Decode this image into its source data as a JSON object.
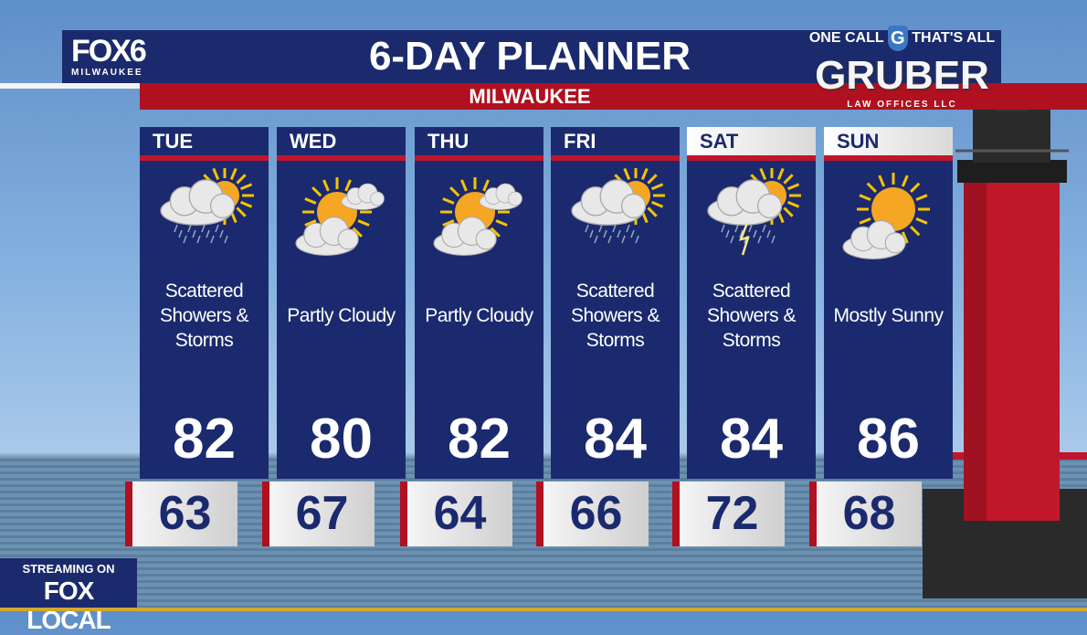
{
  "header": {
    "station": "FOX6",
    "station_city": "MILWAUKEE",
    "title": "6-DAY PLANNER",
    "location": "MILWAUKEE"
  },
  "sponsor": {
    "tagline_left": "ONE CALL",
    "logo_letter": "G",
    "tagline_right": "THAT'S ALL",
    "name": "GRUBER",
    "subtitle": "LAW OFFICES LLC"
  },
  "days": [
    {
      "day": "TUE",
      "condition": "Scattered Showers & Storms",
      "high": "82",
      "low": "63",
      "icon": "sun-cloud-rain-icon",
      "highlight": false
    },
    {
      "day": "WED",
      "condition": "Partly Cloudy",
      "high": "80",
      "low": "67",
      "icon": "partly-cloudy-icon",
      "highlight": false
    },
    {
      "day": "THU",
      "condition": "Partly Cloudy",
      "high": "82",
      "low": "64",
      "icon": "partly-cloudy-icon",
      "highlight": false
    },
    {
      "day": "FRI",
      "condition": "Scattered Showers & Storms",
      "high": "84",
      "low": "66",
      "icon": "sun-cloud-rain-icon",
      "highlight": false
    },
    {
      "day": "SAT",
      "condition": "Scattered Showers & Storms",
      "high": "84",
      "low": "72",
      "icon": "thunderstorm-icon",
      "highlight": true
    },
    {
      "day": "SUN",
      "condition": "Mostly Sunny",
      "high": "86",
      "low": "68",
      "icon": "mostly-sunny-icon",
      "highlight": true
    }
  ],
  "streaming": {
    "line1": "STREAMING ON",
    "line2": "FOX LOCAL"
  },
  "colors": {
    "navy": "#1b2a6e",
    "red": "#b0101f",
    "sun": "#f5a623"
  }
}
